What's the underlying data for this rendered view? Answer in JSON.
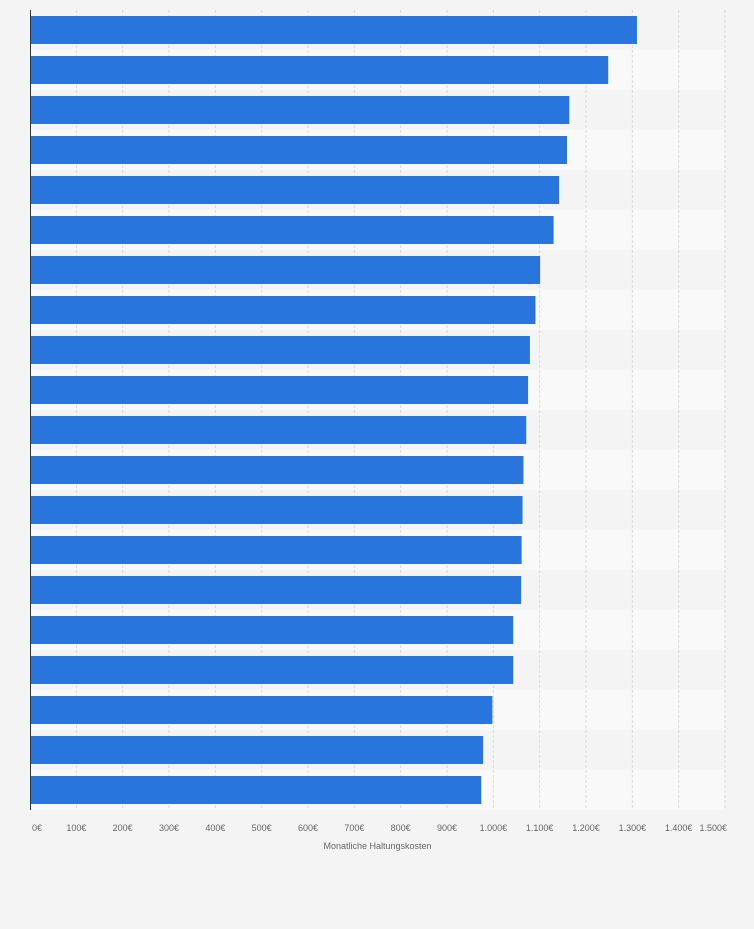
{
  "chart_data": {
    "type": "bar",
    "orientation": "horizontal",
    "title": "",
    "xlabel": "Monatliche Haltungskosten",
    "ylabel": "",
    "categories": [
      "",
      "",
      "",
      "",
      "",
      "",
      "",
      "",
      "",
      "",
      "",
      "",
      "",
      "",
      "",
      "",
      "",
      "",
      "",
      ""
    ],
    "values": [
      1310,
      1248,
      1164,
      1159,
      1142,
      1130,
      1101,
      1091,
      1079,
      1075,
      1071,
      1065,
      1063,
      1061,
      1060,
      1043,
      1043,
      998,
      978,
      974
    ],
    "xlim": [
      0,
      1500
    ],
    "ticks": [
      0,
      100,
      200,
      300,
      400,
      500,
      600,
      700,
      800,
      900,
      1000,
      1100,
      1200,
      1300,
      1400,
      1500
    ],
    "tick_labels": [
      "0€",
      "100€",
      "200€",
      "300€",
      "400€",
      "500€",
      "600€",
      "700€",
      "800€",
      "900€",
      "1.000€",
      "1.100€",
      "1.200€",
      "1.300€",
      "1.400€",
      "1.500€"
    ],
    "grid": true,
    "legend": "none",
    "colors": {
      "bar": "#2876dd",
      "background": "#f4f4f4",
      "band_alt": "#f9f9f9",
      "grid": "#d9d9d9",
      "axis": "#333333",
      "text": "#666666"
    }
  }
}
